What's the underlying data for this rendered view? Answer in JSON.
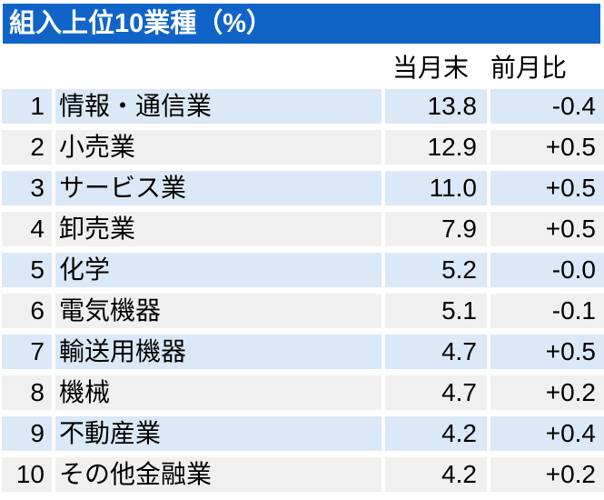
{
  "title": "組入上位10業種（%）",
  "columns": {
    "current_month_end": "当月末",
    "mom_change": "前月比"
  },
  "rows": [
    {
      "rank": "1",
      "name": "情報・通信業",
      "value": "13.8",
      "change": "-0.4"
    },
    {
      "rank": "2",
      "name": "小売業",
      "value": "12.9",
      "change": "+0.5"
    },
    {
      "rank": "3",
      "name": "サービス業",
      "value": "11.0",
      "change": "+0.5"
    },
    {
      "rank": "4",
      "name": "卸売業",
      "value": "7.9",
      "change": "+0.5"
    },
    {
      "rank": "5",
      "name": "化学",
      "value": "5.2",
      "change": "-0.0"
    },
    {
      "rank": "6",
      "name": "電気機器",
      "value": "5.1",
      "change": "-0.1"
    },
    {
      "rank": "7",
      "name": "輸送用機器",
      "value": "4.7",
      "change": "+0.5"
    },
    {
      "rank": "8",
      "name": "機械",
      "value": "4.7",
      "change": "+0.2"
    },
    {
      "rank": "9",
      "name": "不動産業",
      "value": "4.2",
      "change": "+0.4"
    },
    {
      "rank": "10",
      "name": "その他金融業",
      "value": "4.2",
      "change": "+0.2"
    }
  ],
  "colors": {
    "title_bar_bg": "#1164C7",
    "title_text": "#FFFFFF",
    "row_alt_blue": "#DAE8F7",
    "row_alt_gray": "#F0F0F0",
    "body_text": "#000000",
    "page_bg": "#FFFFFF"
  }
}
